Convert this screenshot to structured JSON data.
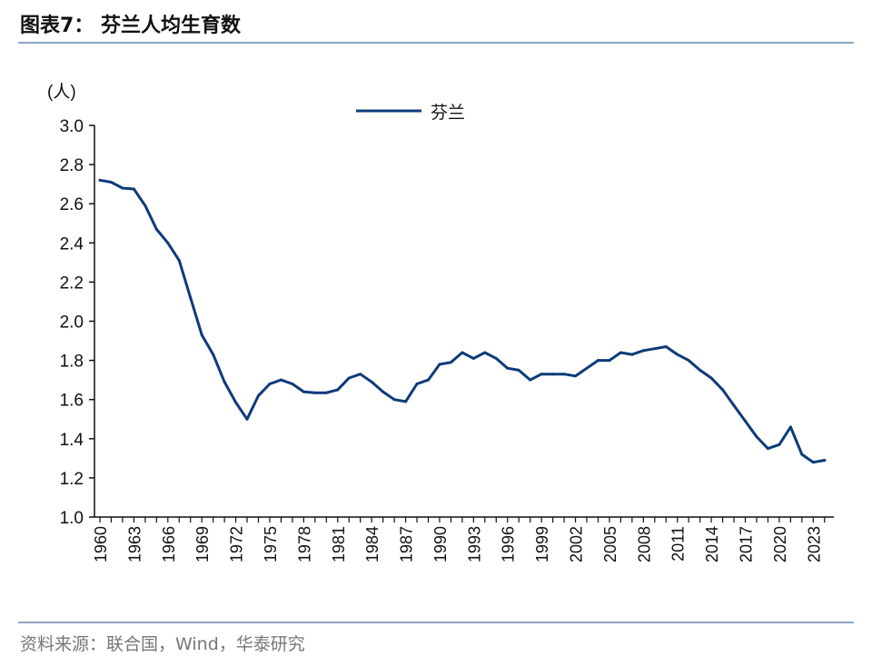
{
  "header": {
    "title": "图表7：  芬兰人均生育数"
  },
  "footer": {
    "source": "资料来源：联合国，Wind，华泰研究"
  },
  "chart_data": {
    "type": "line",
    "ylabel": "(人)",
    "ylim": [
      1.0,
      3.0
    ],
    "yticks": [
      "1.0",
      "1.2",
      "1.4",
      "1.6",
      "1.8",
      "2.0",
      "2.2",
      "2.4",
      "2.6",
      "2.8",
      "3.0"
    ],
    "xtick_labels": [
      "1960",
      "1963",
      "1966",
      "1969",
      "1972",
      "1975",
      "1978",
      "1981",
      "1984",
      "1987",
      "1990",
      "1993",
      "1996",
      "1999",
      "2002",
      "2005",
      "2008",
      "2011",
      "2014",
      "2017",
      "2020",
      "2023"
    ],
    "legend_position": "top-center",
    "series": [
      {
        "name": "芬兰",
        "color": "#0d3b7a",
        "x": [
          1960,
          1961,
          1962,
          1963,
          1964,
          1965,
          1966,
          1967,
          1968,
          1969,
          1970,
          1971,
          1972,
          1973,
          1974,
          1975,
          1976,
          1977,
          1978,
          1979,
          1980,
          1981,
          1982,
          1983,
          1984,
          1985,
          1986,
          1987,
          1988,
          1989,
          1990,
          1991,
          1992,
          1993,
          1994,
          1995,
          1996,
          1997,
          1998,
          1999,
          2000,
          2001,
          2002,
          2003,
          2004,
          2005,
          2006,
          2007,
          2008,
          2009,
          2010,
          2011,
          2012,
          2013,
          2014,
          2015,
          2016,
          2017,
          2018,
          2019,
          2020,
          2021,
          2022,
          2023,
          2024
        ],
        "values": [
          2.72,
          2.71,
          2.68,
          2.675,
          2.59,
          2.47,
          2.4,
          2.31,
          2.12,
          1.93,
          1.83,
          1.69,
          1.585,
          1.5,
          1.62,
          1.68,
          1.7,
          1.68,
          1.64,
          1.635,
          1.635,
          1.65,
          1.71,
          1.73,
          1.69,
          1.64,
          1.6,
          1.59,
          1.68,
          1.7,
          1.78,
          1.79,
          1.84,
          1.81,
          1.84,
          1.81,
          1.76,
          1.75,
          1.7,
          1.73,
          1.73,
          1.73,
          1.72,
          1.76,
          1.8,
          1.8,
          1.84,
          1.83,
          1.85,
          1.86,
          1.87,
          1.83,
          1.8,
          1.75,
          1.71,
          1.65,
          1.57,
          1.49,
          1.41,
          1.35,
          1.37,
          1.46,
          1.32,
          1.28,
          1.29
        ]
      }
    ]
  }
}
